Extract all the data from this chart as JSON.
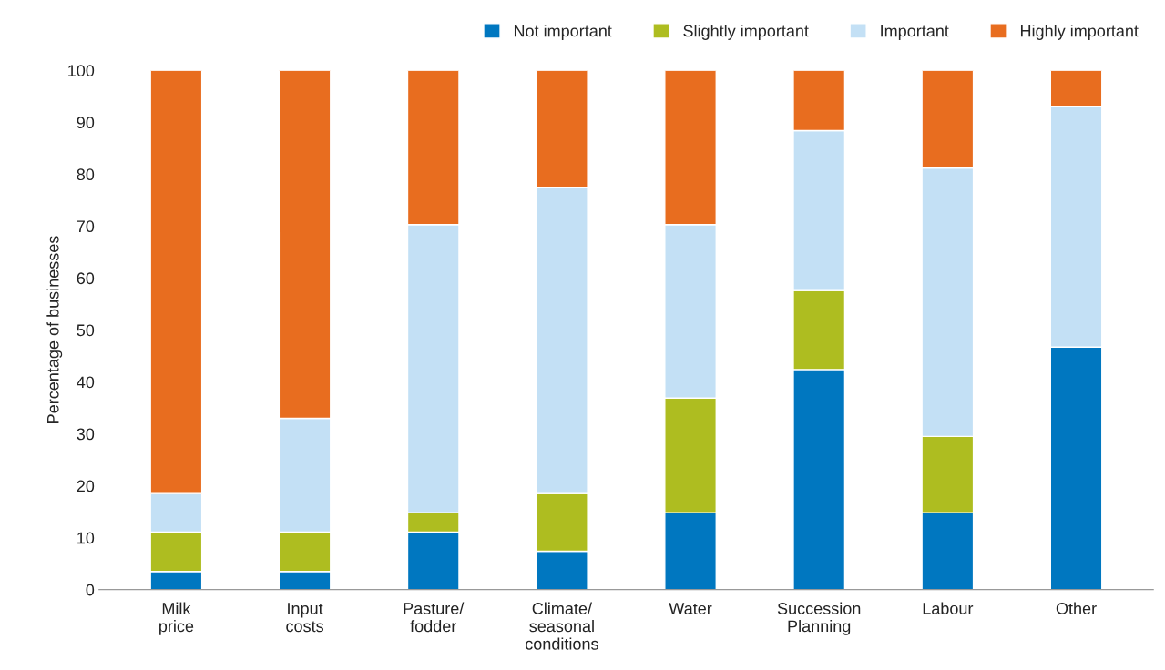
{
  "chart_data": {
    "type": "bar",
    "stacked": true,
    "ylabel": "Percentage of businesses",
    "categories": [
      "Milk\nprice",
      "Input\ncosts",
      "Pasture/\nfodder",
      "Climate/\nseasonal\nconditions",
      "Water",
      "Succession\nPlanning",
      "Labour",
      "Other"
    ],
    "series": [
      {
        "name": "Not important",
        "color": "#0077c0",
        "values": [
          3.5,
          3.5,
          11.1,
          7.4,
          14.8,
          42.4,
          14.8,
          46.7
        ]
      },
      {
        "name": "Slightly important",
        "color": "#aebd20",
        "values": [
          7.6,
          7.6,
          3.7,
          11.1,
          22.1,
          15.2,
          14.7,
          0
        ]
      },
      {
        "name": "Important",
        "color": "#c3e0f5",
        "values": [
          7.4,
          21.9,
          55.5,
          59.0,
          33.4,
          30.8,
          51.7,
          46.4
        ]
      },
      {
        "name": "Highly important",
        "color": "#e86d1f",
        "values": [
          81.5,
          67.0,
          29.7,
          22.5,
          29.7,
          11.6,
          18.8,
          6.9
        ]
      }
    ],
    "ylim": [
      0,
      100
    ],
    "yticks": [
      0,
      10,
      20,
      30,
      40,
      50,
      60,
      70,
      80,
      90,
      100
    ],
    "grid": false,
    "legend": "top right"
  }
}
